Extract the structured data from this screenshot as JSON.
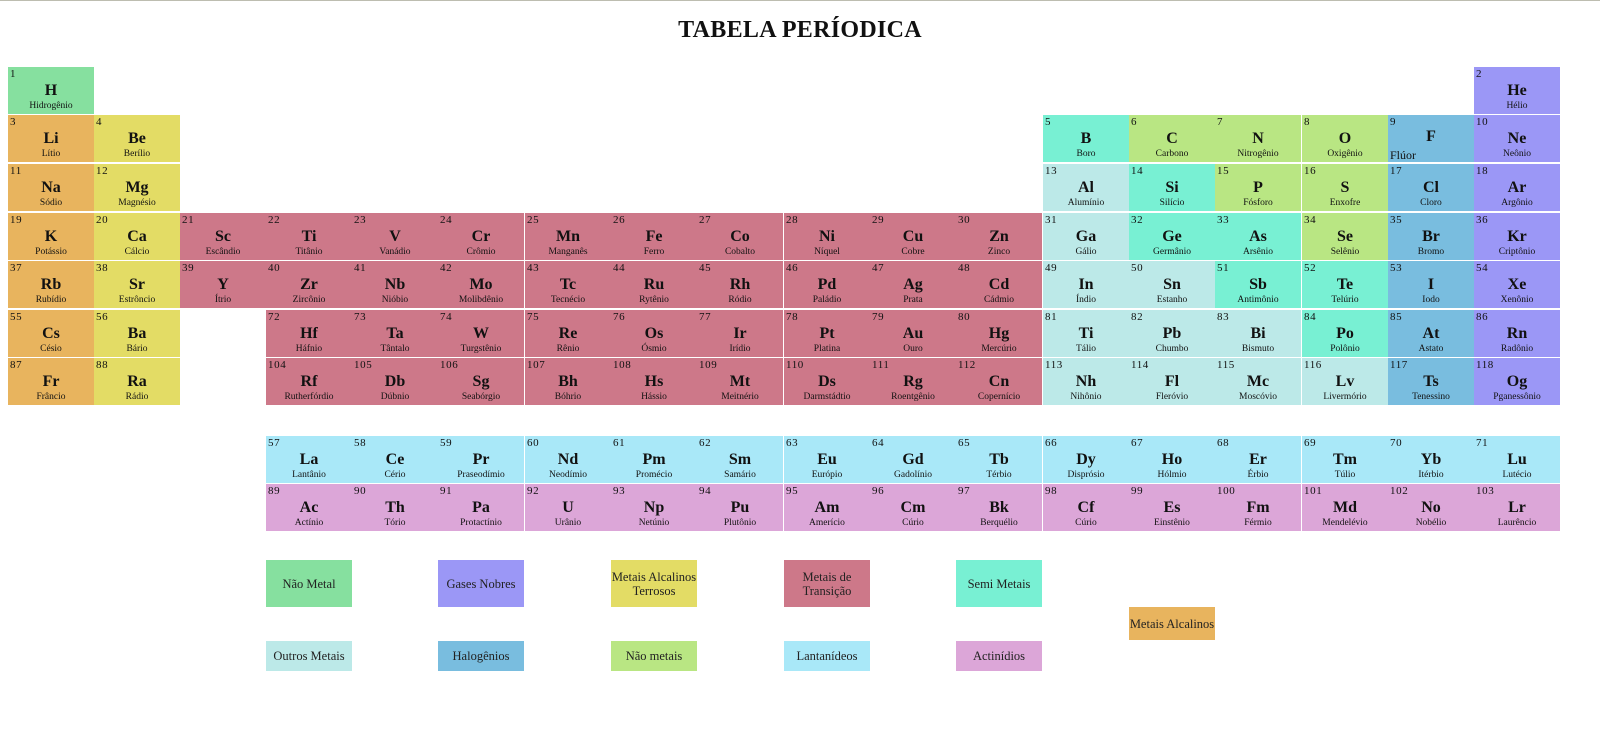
{
  "title": "TABELA PERÍODICA",
  "colors": {
    "nonmetal": "#86e09f",
    "noble": "#9b97f6",
    "alkaline_earth": "#e3dc65",
    "transition": "#cd7889",
    "metalloid": "#78f0d3",
    "alkali": "#e8b45e",
    "post_transition": "#bce9e8",
    "halogen": "#79bddf",
    "nonmetal2": "#b9e683",
    "lanthanide": "#a9e8f8",
    "actinide": "#dca6d8"
  },
  "elements": [
    {
      "n": "1",
      "s": "H",
      "name": "Hidrogênio",
      "r": 0,
      "c": 0,
      "cat": "nonmetal"
    },
    {
      "n": "2",
      "s": "He",
      "name": "Hélio",
      "r": 0,
      "c": 17,
      "cat": "noble"
    },
    {
      "n": "3",
      "s": "Li",
      "name": "Lítio",
      "r": 1,
      "c": 0,
      "cat": "alkali"
    },
    {
      "n": "4",
      "s": "Be",
      "name": "Berílio",
      "r": 1,
      "c": 1,
      "cat": "alkaline_earth"
    },
    {
      "n": "5",
      "s": "B",
      "name": "Boro",
      "r": 1,
      "c": 12,
      "cat": "metalloid"
    },
    {
      "n": "6",
      "s": "C",
      "name": "Carbono",
      "r": 1,
      "c": 13,
      "cat": "nonmetal2"
    },
    {
      "n": "7",
      "s": "N",
      "name": "Nitrogênio",
      "r": 1,
      "c": 14,
      "cat": "nonmetal2"
    },
    {
      "n": "8",
      "s": "O",
      "name": "Oxigênio",
      "r": 1,
      "c": 15,
      "cat": "nonmetal2"
    },
    {
      "n": "9",
      "s": "F",
      "name": "Flúor",
      "r": 1,
      "c": 16,
      "cat": "halogen",
      "flu": true
    },
    {
      "n": "10",
      "s": "Ne",
      "name": "Neônio",
      "r": 1,
      "c": 17,
      "cat": "noble"
    },
    {
      "n": "11",
      "s": "Na",
      "name": "Sódio",
      "r": 2,
      "c": 0,
      "cat": "alkali"
    },
    {
      "n": "12",
      "s": "Mg",
      "name": "Magnésio",
      "r": 2,
      "c": 1,
      "cat": "alkaline_earth"
    },
    {
      "n": "13",
      "s": "Al",
      "name": "Alumínio",
      "r": 2,
      "c": 12,
      "cat": "post_transition"
    },
    {
      "n": "14",
      "s": "Si",
      "name": "Silício",
      "r": 2,
      "c": 13,
      "cat": "metalloid"
    },
    {
      "n": "15",
      "s": "P",
      "name": "Fósforo",
      "r": 2,
      "c": 14,
      "cat": "nonmetal2"
    },
    {
      "n": "16",
      "s": "S",
      "name": "Enxofre",
      "r": 2,
      "c": 15,
      "cat": "nonmetal2"
    },
    {
      "n": "17",
      "s": "Cl",
      "name": "Cloro",
      "r": 2,
      "c": 16,
      "cat": "halogen"
    },
    {
      "n": "18",
      "s": "Ar",
      "name": "Argônio",
      "r": 2,
      "c": 17,
      "cat": "noble"
    },
    {
      "n": "19",
      "s": "K",
      "name": "Potássio",
      "r": 3,
      "c": 0,
      "cat": "alkali"
    },
    {
      "n": "20",
      "s": "Ca",
      "name": "Cálcio",
      "r": 3,
      "c": 1,
      "cat": "alkaline_earth"
    },
    {
      "n": "21",
      "s": "Sc",
      "name": "Escândio",
      "r": 3,
      "c": 2,
      "cat": "transition"
    },
    {
      "n": "22",
      "s": "Ti",
      "name": "Titânio",
      "r": 3,
      "c": 3,
      "cat": "transition"
    },
    {
      "n": "23",
      "s": "V",
      "name": "Vanádio",
      "r": 3,
      "c": 4,
      "cat": "transition"
    },
    {
      "n": "24",
      "s": "Cr",
      "name": "Crômio",
      "r": 3,
      "c": 5,
      "cat": "transition"
    },
    {
      "n": "25",
      "s": "Mn",
      "name": "Manganês",
      "r": 3,
      "c": 6,
      "cat": "transition"
    },
    {
      "n": "26",
      "s": "Fe",
      "name": "Ferro",
      "r": 3,
      "c": 7,
      "cat": "transition"
    },
    {
      "n": "27",
      "s": "Co",
      "name": "Cobalto",
      "r": 3,
      "c": 8,
      "cat": "transition"
    },
    {
      "n": "28",
      "s": "Ni",
      "name": "Níquel",
      "r": 3,
      "c": 9,
      "cat": "transition"
    },
    {
      "n": "29",
      "s": "Cu",
      "name": "Cobre",
      "r": 3,
      "c": 10,
      "cat": "transition"
    },
    {
      "n": "30",
      "s": "Zn",
      "name": "Zinco",
      "r": 3,
      "c": 11,
      "cat": "transition"
    },
    {
      "n": "31",
      "s": "Ga",
      "name": "Gálio",
      "r": 3,
      "c": 12,
      "cat": "post_transition"
    },
    {
      "n": "32",
      "s": "Ge",
      "name": "Germânio",
      "r": 3,
      "c": 13,
      "cat": "metalloid"
    },
    {
      "n": "33",
      "s": "As",
      "name": "Arsênio",
      "r": 3,
      "c": 14,
      "cat": "metalloid"
    },
    {
      "n": "34",
      "s": "Se",
      "name": "Selênio",
      "r": 3,
      "c": 15,
      "cat": "nonmetal2"
    },
    {
      "n": "35",
      "s": "Br",
      "name": "Bromo",
      "r": 3,
      "c": 16,
      "cat": "halogen"
    },
    {
      "n": "36",
      "s": "Kr",
      "name": "Criptônio",
      "r": 3,
      "c": 17,
      "cat": "noble"
    },
    {
      "n": "37",
      "s": "Rb",
      "name": "Rubídio",
      "r": 4,
      "c": 0,
      "cat": "alkali"
    },
    {
      "n": "38",
      "s": "Sr",
      "name": "Estrôncio",
      "r": 4,
      "c": 1,
      "cat": "alkaline_earth"
    },
    {
      "n": "39",
      "s": "Y",
      "name": "Ítrio",
      "r": 4,
      "c": 2,
      "cat": "transition"
    },
    {
      "n": "40",
      "s": "Zr",
      "name": "Zircônio",
      "r": 4,
      "c": 3,
      "cat": "transition"
    },
    {
      "n": "41",
      "s": "Nb",
      "name": "Nióbio",
      "r": 4,
      "c": 4,
      "cat": "transition"
    },
    {
      "n": "42",
      "s": "Mo",
      "name": "Molibdênio",
      "r": 4,
      "c": 5,
      "cat": "transition"
    },
    {
      "n": "43",
      "s": "Tc",
      "name": "Tecnécio",
      "r": 4,
      "c": 6,
      "cat": "transition"
    },
    {
      "n": "44",
      "s": "Ru",
      "name": "Rytênio",
      "r": 4,
      "c": 7,
      "cat": "transition"
    },
    {
      "n": "45",
      "s": "Rh",
      "name": "Ródio",
      "r": 4,
      "c": 8,
      "cat": "transition"
    },
    {
      "n": "46",
      "s": "Pd",
      "name": "Paládio",
      "r": 4,
      "c": 9,
      "cat": "transition"
    },
    {
      "n": "47",
      "s": "Ag",
      "name": "Prata",
      "r": 4,
      "c": 10,
      "cat": "transition"
    },
    {
      "n": "48",
      "s": "Cd",
      "name": "Cádmio",
      "r": 4,
      "c": 11,
      "cat": "transition"
    },
    {
      "n": "49",
      "s": "In",
      "name": "Índio",
      "r": 4,
      "c": 12,
      "cat": "post_transition"
    },
    {
      "n": "50",
      "s": "Sn",
      "name": "Estanho",
      "r": 4,
      "c": 13,
      "cat": "post_transition"
    },
    {
      "n": "51",
      "s": "Sb",
      "name": "Antimônio",
      "r": 4,
      "c": 14,
      "cat": "metalloid"
    },
    {
      "n": "52",
      "s": "Te",
      "name": "Telúrio",
      "r": 4,
      "c": 15,
      "cat": "metalloid"
    },
    {
      "n": "53",
      "s": "I",
      "name": "Iodo",
      "r": 4,
      "c": 16,
      "cat": "halogen"
    },
    {
      "n": "54",
      "s": "Xe",
      "name": "Xenônio",
      "r": 4,
      "c": 17,
      "cat": "noble"
    },
    {
      "n": "55",
      "s": "Cs",
      "name": "Césio",
      "r": 5,
      "c": 0,
      "cat": "alkali"
    },
    {
      "n": "56",
      "s": "Ba",
      "name": "Bário",
      "r": 5,
      "c": 1,
      "cat": "alkaline_earth"
    },
    {
      "n": "72",
      "s": "Hf",
      "name": "Háfnio",
      "r": 5,
      "c": 3,
      "cat": "transition"
    },
    {
      "n": "73",
      "s": "Ta",
      "name": "Tântalo",
      "r": 5,
      "c": 4,
      "cat": "transition"
    },
    {
      "n": "74",
      "s": "W",
      "name": "Turgstênio",
      "r": 5,
      "c": 5,
      "cat": "transition"
    },
    {
      "n": "75",
      "s": "Re",
      "name": "Rênio",
      "r": 5,
      "c": 6,
      "cat": "transition"
    },
    {
      "n": "76",
      "s": "Os",
      "name": "Ósmio",
      "r": 5,
      "c": 7,
      "cat": "transition"
    },
    {
      "n": "77",
      "s": "Ir",
      "name": "Irídio",
      "r": 5,
      "c": 8,
      "cat": "transition"
    },
    {
      "n": "78",
      "s": "Pt",
      "name": "Platina",
      "r": 5,
      "c": 9,
      "cat": "transition"
    },
    {
      "n": "79",
      "s": "Au",
      "name": "Ouro",
      "r": 5,
      "c": 10,
      "cat": "transition"
    },
    {
      "n": "80",
      "s": "Hg",
      "name": "Mercúrio",
      "r": 5,
      "c": 11,
      "cat": "transition"
    },
    {
      "n": "81",
      "s": "Ti",
      "name": "Tálio",
      "r": 5,
      "c": 12,
      "cat": "post_transition"
    },
    {
      "n": "82",
      "s": "Pb",
      "name": "Chumbo",
      "r": 5,
      "c": 13,
      "cat": "post_transition"
    },
    {
      "n": "83",
      "s": "Bi",
      "name": "Bismuto",
      "r": 5,
      "c": 14,
      "cat": "post_transition"
    },
    {
      "n": "84",
      "s": "Po",
      "name": "Polônio",
      "r": 5,
      "c": 15,
      "cat": "metalloid"
    },
    {
      "n": "85",
      "s": "At",
      "name": "Astato",
      "r": 5,
      "c": 16,
      "cat": "halogen"
    },
    {
      "n": "86",
      "s": "Rn",
      "name": "Radônio",
      "r": 5,
      "c": 17,
      "cat": "noble"
    },
    {
      "n": "87",
      "s": "Fr",
      "name": "Frâncio",
      "r": 6,
      "c": 0,
      "cat": "alkali"
    },
    {
      "n": "88",
      "s": "Ra",
      "name": "Rádio",
      "r": 6,
      "c": 1,
      "cat": "alkaline_earth"
    },
    {
      "n": "104",
      "s": "Rf",
      "name": "Rutherfórdio",
      "r": 6,
      "c": 3,
      "cat": "transition"
    },
    {
      "n": "105",
      "s": "Db",
      "name": "Dúbnio",
      "r": 6,
      "c": 4,
      "cat": "transition"
    },
    {
      "n": "106",
      "s": "Sg",
      "name": "Seabórgio",
      "r": 6,
      "c": 5,
      "cat": "transition"
    },
    {
      "n": "107",
      "s": "Bh",
      "name": "Bóhrio",
      "r": 6,
      "c": 6,
      "cat": "transition"
    },
    {
      "n": "108",
      "s": "Hs",
      "name": "Hássio",
      "r": 6,
      "c": 7,
      "cat": "transition"
    },
    {
      "n": "109",
      "s": "Mt",
      "name": "Meitnério",
      "r": 6,
      "c": 8,
      "cat": "transition"
    },
    {
      "n": "110",
      "s": "Ds",
      "name": "Darmstádtio",
      "r": 6,
      "c": 9,
      "cat": "transition"
    },
    {
      "n": "111",
      "s": "Rg",
      "name": "Roentgênio",
      "r": 6,
      "c": 10,
      "cat": "transition"
    },
    {
      "n": "112",
      "s": "Cn",
      "name": "Copernício",
      "r": 6,
      "c": 11,
      "cat": "transition"
    },
    {
      "n": "113",
      "s": "Nh",
      "name": "Nihônio",
      "r": 6,
      "c": 12,
      "cat": "post_transition"
    },
    {
      "n": "114",
      "s": "Fl",
      "name": "Fleróvio",
      "r": 6,
      "c": 13,
      "cat": "post_transition"
    },
    {
      "n": "115",
      "s": "Mc",
      "name": "Moscóvio",
      "r": 6,
      "c": 14,
      "cat": "post_transition"
    },
    {
      "n": "116",
      "s": "Lv",
      "name": "Livermório",
      "r": 6,
      "c": 15,
      "cat": "post_transition"
    },
    {
      "n": "117",
      "s": "Ts",
      "name": "Tenessino",
      "r": 6,
      "c": 16,
      "cat": "halogen"
    },
    {
      "n": "118",
      "s": "Og",
      "name": "Pganessônio",
      "r": 6,
      "c": 17,
      "cat": "noble"
    },
    {
      "n": "57",
      "s": "La",
      "name": "Lantânio",
      "r": 7,
      "c": 3,
      "cat": "lanthanide"
    },
    {
      "n": "58",
      "s": "Ce",
      "name": "Cério",
      "r": 7,
      "c": 4,
      "cat": "lanthanide"
    },
    {
      "n": "59",
      "s": "Pr",
      "name": "Praseodímio",
      "r": 7,
      "c": 5,
      "cat": "lanthanide"
    },
    {
      "n": "60",
      "s": "Nd",
      "name": "Neodímio",
      "r": 7,
      "c": 6,
      "cat": "lanthanide"
    },
    {
      "n": "61",
      "s": "Pm",
      "name": "Promécio",
      "r": 7,
      "c": 7,
      "cat": "lanthanide"
    },
    {
      "n": "62",
      "s": "Sm",
      "name": "Samário",
      "r": 7,
      "c": 8,
      "cat": "lanthanide"
    },
    {
      "n": "63",
      "s": "Eu",
      "name": "Európio",
      "r": 7,
      "c": 9,
      "cat": "lanthanide"
    },
    {
      "n": "64",
      "s": "Gd",
      "name": "Gadolínio",
      "r": 7,
      "c": 10,
      "cat": "lanthanide"
    },
    {
      "n": "65",
      "s": "Tb",
      "name": "Térbio",
      "r": 7,
      "c": 11,
      "cat": "lanthanide"
    },
    {
      "n": "66",
      "s": "Dy",
      "name": "Disprósio",
      "r": 7,
      "c": 12,
      "cat": "lanthanide"
    },
    {
      "n": "67",
      "s": "Ho",
      "name": "Hólmio",
      "r": 7,
      "c": 13,
      "cat": "lanthanide"
    },
    {
      "n": "68",
      "s": "Er",
      "name": "Érbio",
      "r": 7,
      "c": 14,
      "cat": "lanthanide"
    },
    {
      "n": "69",
      "s": "Tm",
      "name": "Túlio",
      "r": 7,
      "c": 15,
      "cat": "lanthanide"
    },
    {
      "n": "70",
      "s": "Yb",
      "name": "Itérbio",
      "r": 7,
      "c": 16,
      "cat": "lanthanide"
    },
    {
      "n": "71",
      "s": "Lu",
      "name": "Lutécio",
      "r": 7,
      "c": 17,
      "cat": "lanthanide"
    },
    {
      "n": "89",
      "s": "Ac",
      "name": "Actínio",
      "r": 8,
      "c": 3,
      "cat": "actinide"
    },
    {
      "n": "90",
      "s": "Th",
      "name": "Tório",
      "r": 8,
      "c": 4,
      "cat": "actinide"
    },
    {
      "n": "91",
      "s": "Pa",
      "name": "Protactínio",
      "r": 8,
      "c": 5,
      "cat": "actinide"
    },
    {
      "n": "92",
      "s": "U",
      "name": "Urânio",
      "r": 8,
      "c": 6,
      "cat": "actinide"
    },
    {
      "n": "93",
      "s": "Np",
      "name": "Netúnio",
      "r": 8,
      "c": 7,
      "cat": "actinide"
    },
    {
      "n": "94",
      "s": "Pu",
      "name": "Plutônio",
      "r": 8,
      "c": 8,
      "cat": "actinide"
    },
    {
      "n": "95",
      "s": "Am",
      "name": "Amerício",
      "r": 8,
      "c": 9,
      "cat": "actinide"
    },
    {
      "n": "96",
      "s": "Cm",
      "name": "Cúrio",
      "r": 8,
      "c": 10,
      "cat": "actinide"
    },
    {
      "n": "97",
      "s": "Bk",
      "name": "Berquélio",
      "r": 8,
      "c": 11,
      "cat": "actinide"
    },
    {
      "n": "98",
      "s": "Cf",
      "name": "Cúrio",
      "r": 8,
      "c": 12,
      "cat": "actinide"
    },
    {
      "n": "99",
      "s": "Es",
      "name": "Einstênio",
      "r": 8,
      "c": 13,
      "cat": "actinide"
    },
    {
      "n": "100",
      "s": "Fm",
      "name": "Férmio",
      "r": 8,
      "c": 14,
      "cat": "actinide"
    },
    {
      "n": "101",
      "s": "Md",
      "name": "Mendelévio",
      "r": 8,
      "c": 15,
      "cat": "actinide"
    },
    {
      "n": "102",
      "s": "No",
      "name": "Nobélio",
      "r": 8,
      "c": 16,
      "cat": "actinide"
    },
    {
      "n": "103",
      "s": "Lr",
      "name": "Laurêncio",
      "r": 8,
      "c": 17,
      "cat": "actinide"
    }
  ],
  "legend": [
    {
      "id": "nao-metal",
      "label": "Não Metal",
      "cat": "nonmetal"
    },
    {
      "id": "gases-nobres",
      "label": "Gases Nobres",
      "cat": "noble"
    },
    {
      "id": "metais-alcalinos-terrosos",
      "label": "Metais Alcalinos Terrosos",
      "cat": "alkaline_earth"
    },
    {
      "id": "metais-de-transicao",
      "label": "Metais de Transição",
      "cat": "transition"
    },
    {
      "id": "semi-metais",
      "label": "Semi Metais",
      "cat": "metalloid"
    },
    {
      "id": "metais-alcalinos",
      "label": "Metais Alcalinos",
      "cat": "alkali"
    },
    {
      "id": "outros-metais",
      "label": "Outros Metais",
      "cat": "post_transition"
    },
    {
      "id": "halogenios",
      "label": "Halogênios",
      "cat": "halogen"
    },
    {
      "id": "nao-metais",
      "label": "Não metais",
      "cat": "nonmetal2"
    },
    {
      "id": "lantanideos",
      "label": "Lantanídeos",
      "cat": "lanthanide"
    },
    {
      "id": "actinideos",
      "label": "Actinídios",
      "cat": "actinide"
    }
  ]
}
